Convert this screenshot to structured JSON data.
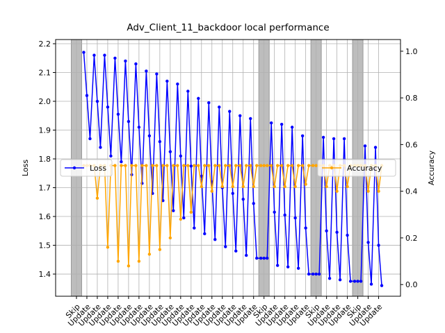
{
  "chart_data": {
    "type": "line",
    "title": "Adv_Client_11_backdoor local performance",
    "y_label": "Loss",
    "y2_label": "Accuracy",
    "xlim": [
      -2,
      31.1
    ],
    "xticks": [
      {
        "value": 0,
        "label": "Skip"
      },
      {
        "value": 1,
        "label": "Update"
      },
      {
        "value": 2,
        "label": "Update"
      },
      {
        "value": 3,
        "label": "Update"
      },
      {
        "value": 4,
        "label": "Update"
      },
      {
        "value": 5,
        "label": "Update"
      },
      {
        "value": 6,
        "label": "Update"
      },
      {
        "value": 7,
        "label": "Update"
      },
      {
        "value": 8,
        "label": "Update"
      },
      {
        "value": 9,
        "label": "Update"
      },
      {
        "value": 10,
        "label": "Update"
      },
      {
        "value": 11,
        "label": "Update"
      },
      {
        "value": 12,
        "label": "Update"
      },
      {
        "value": 13,
        "label": "Update"
      },
      {
        "value": 14,
        "label": "Update"
      },
      {
        "value": 15,
        "label": "Update"
      },
      {
        "value": 16,
        "label": "Update"
      },
      {
        "value": 17,
        "label": "Update"
      },
      {
        "value": 18,
        "label": "Skip"
      },
      {
        "value": 19,
        "label": "Update"
      },
      {
        "value": 20,
        "label": "Update"
      },
      {
        "value": 21,
        "label": "Update"
      },
      {
        "value": 22,
        "label": "Update"
      },
      {
        "value": 23,
        "label": "Skip"
      },
      {
        "value": 24,
        "label": "Update"
      },
      {
        "value": 25,
        "label": "Update"
      },
      {
        "value": 26,
        "label": "Update"
      },
      {
        "value": 27,
        "label": "Skip"
      },
      {
        "value": 28,
        "label": "Update"
      },
      {
        "value": 29,
        "label": "Update"
      }
    ],
    "shaded": [
      0,
      18,
      23,
      27
    ],
    "ylim": [
      1.323,
      2.2145
    ],
    "yticks": [
      1.4,
      1.5,
      1.6,
      1.7,
      1.8,
      1.9,
      {
        "value": 2.0,
        "label": "2.0"
      },
      2.1,
      2.2
    ],
    "y2lim": [
      -0.05,
      1.05
    ],
    "y2ticks": [
      {
        "value": 0,
        "label": "0.0"
      },
      0.2,
      0.4,
      0.6,
      0.8,
      {
        "value": 1,
        "label": "1.0"
      }
    ],
    "grid": true,
    "x": [
      -0.3,
      0,
      0.3,
      0.7,
      1,
      1.3,
      1.7,
      2,
      2.3,
      2.7,
      3,
      3.3,
      3.7,
      4,
      4.3,
      4.7,
      5,
      5.3,
      5.7,
      6,
      6.3,
      6.7,
      7,
      7.3,
      7.7,
      8,
      8.3,
      8.7,
      9,
      9.3,
      9.7,
      10,
      10.3,
      10.7,
      11,
      11.3,
      11.7,
      12,
      12.3,
      12.7,
      13,
      13.3,
      13.7,
      14,
      14.3,
      14.7,
      15,
      15.3,
      15.7,
      16,
      16.3,
      16.7,
      17,
      17.3,
      17.7,
      18,
      18.3,
      18.7,
      19,
      19.3,
      19.7,
      20,
      20.3,
      20.7,
      21,
      21.3,
      21.7,
      22,
      22.3,
      22.7,
      23,
      23.3,
      23.7,
      24,
      24.3,
      24.7,
      25,
      25.3,
      25.7,
      26,
      26.3,
      26.7,
      27,
      27.3,
      27.7,
      28,
      28.3,
      28.7,
      29,
      29.3
    ],
    "series": [
      {
        "name": "Loss",
        "color": "#0000ff",
        "axis": "y",
        "legend": "center left",
        "values": [
          null,
          null,
          null,
          2.17,
          2.02,
          1.87,
          2.16,
          2.0,
          1.84,
          2.16,
          1.98,
          1.81,
          2.15,
          1.955,
          1.79,
          2.14,
          1.93,
          1.745,
          2.13,
          1.91,
          1.715,
          2.105,
          1.88,
          1.68,
          2.095,
          1.86,
          1.655,
          2.07,
          1.825,
          1.62,
          2.06,
          1.81,
          1.595,
          2.035,
          1.775,
          1.56,
          2.01,
          1.74,
          1.54,
          1.995,
          1.72,
          1.52,
          1.98,
          1.7,
          1.495,
          1.965,
          1.68,
          1.48,
          1.95,
          1.66,
          1.465,
          1.94,
          1.645,
          1.455,
          1.455,
          1.455,
          1.455,
          1.925,
          1.615,
          1.43,
          1.92,
          1.605,
          1.425,
          1.91,
          1.595,
          1.42,
          1.88,
          1.56,
          1.4,
          1.4,
          1.4,
          1.4,
          1.875,
          1.55,
          1.385,
          1.87,
          1.545,
          1.38,
          1.87,
          1.535,
          1.375,
          1.375,
          1.375,
          1.375,
          1.845,
          1.51,
          1.365,
          1.84,
          1.5,
          1.36
        ]
      },
      {
        "name": "Accuracy",
        "color": "#ffa500",
        "axis": "y2",
        "legend": "center right",
        "values": [
          null,
          null,
          null,
          0.51,
          0.51,
          0.51,
          0.51,
          0.37,
          0.51,
          0.51,
          0.16,
          0.51,
          0.51,
          0.1,
          0.51,
          0.51,
          0.08,
          0.51,
          0.51,
          0.1,
          0.51,
          0.51,
          0.13,
          0.51,
          0.51,
          0.15,
          0.51,
          0.51,
          0.2,
          0.51,
          0.51,
          0.28,
          0.51,
          0.51,
          0.31,
          0.51,
          0.51,
          0.42,
          0.51,
          0.51,
          0.4,
          0.51,
          0.51,
          0.42,
          0.51,
          0.51,
          0.42,
          0.51,
          0.51,
          0.42,
          0.51,
          0.51,
          0.42,
          0.51,
          0.51,
          0.51,
          0.51,
          0.51,
          0.42,
          0.51,
          0.51,
          0.42,
          0.51,
          0.51,
          0.42,
          0.51,
          0.51,
          0.43,
          0.51,
          0.51,
          0.51,
          0.51,
          0.51,
          0.42,
          0.51,
          0.51,
          0.4,
          0.51,
          0.51,
          0.42,
          0.51,
          0.51,
          0.51,
          0.51,
          0.51,
          0.4,
          0.51,
          0.51,
          0.4,
          0.51
        ]
      }
    ]
  }
}
